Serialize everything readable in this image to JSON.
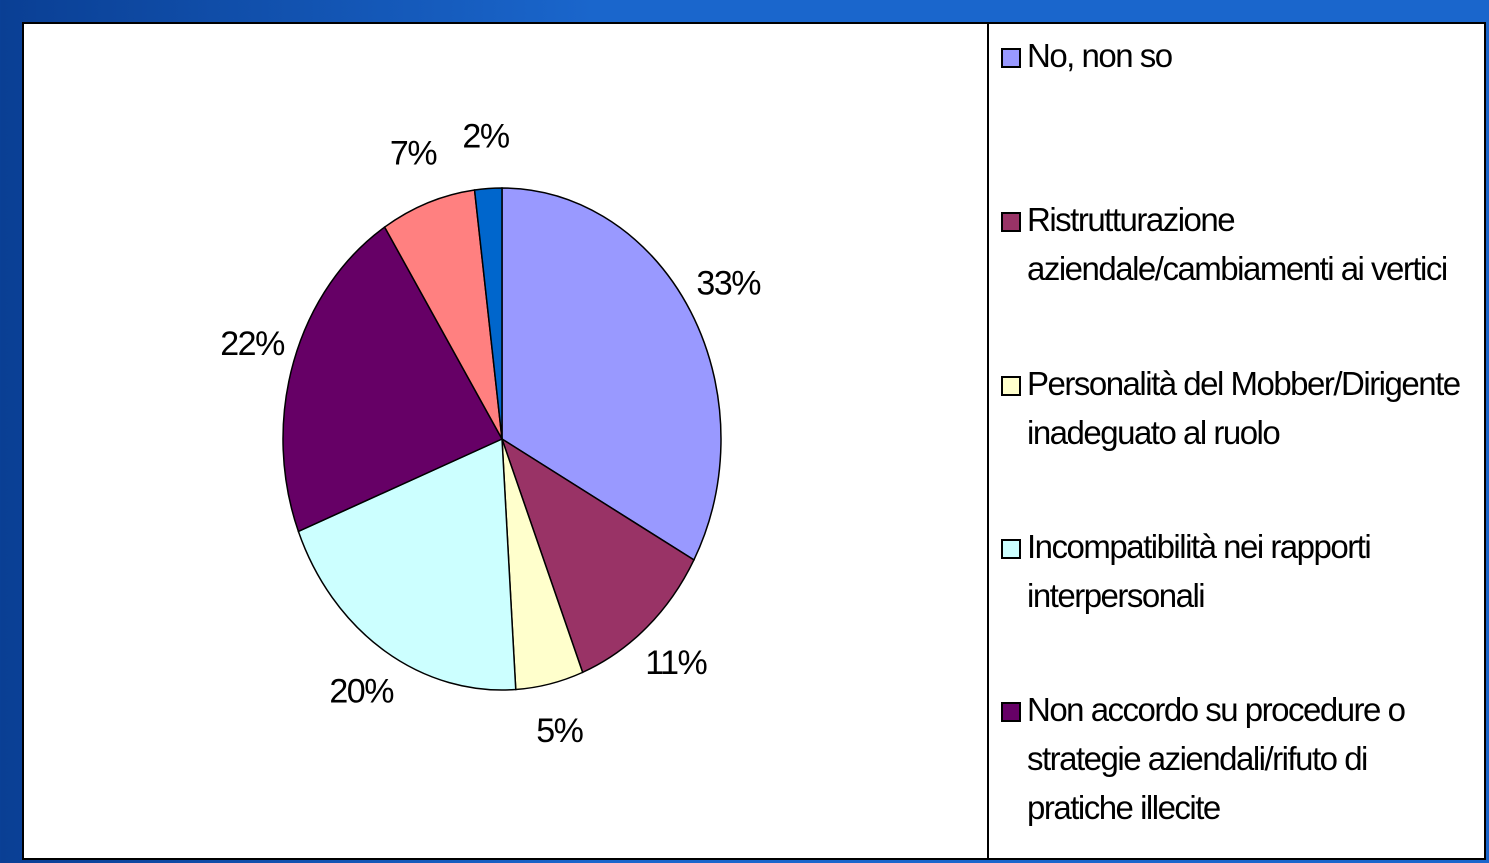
{
  "chart_data": {
    "type": "pie",
    "categories": [
      "No, non so",
      "Ristrutturazione aziendale/cambiamenti ai vertici",
      "Personalità del Mobber/Dirigente inadeguato al ruolo",
      "Incompatibilità nei rapporti interpersonali",
      "Non accordo su procedure o strategie aziendali/rifuto di pratiche illecite",
      null,
      null
    ],
    "values": [
      33,
      11,
      5,
      20,
      22,
      7,
      2
    ],
    "value_labels": [
      "33%",
      "11%",
      "5%",
      "20%",
      "22%",
      "7%",
      "2%"
    ],
    "colors": [
      "#9999ff",
      "#993366",
      "#ffffcc",
      "#ccffff",
      "#660066",
      "#ff8080",
      "#0066cc"
    ]
  }
}
